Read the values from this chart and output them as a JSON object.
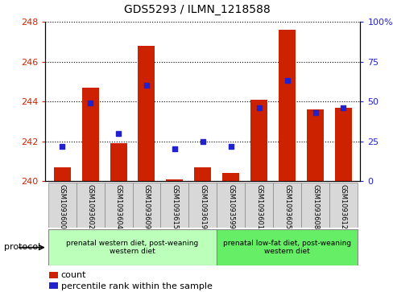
{
  "title": "GDS5293 / ILMN_1218588",
  "samples": [
    "GSM1093600",
    "GSM1093602",
    "GSM1093604",
    "GSM1093609",
    "GSM1093615",
    "GSM1093619",
    "GSM1093599",
    "GSM1093601",
    "GSM1093605",
    "GSM1093608",
    "GSM1093612"
  ],
  "bar_heights": [
    240.7,
    244.7,
    241.9,
    246.8,
    240.1,
    240.7,
    240.4,
    244.1,
    247.6,
    243.6,
    243.7
  ],
  "bar_base": 240,
  "percentile_values": [
    22,
    49,
    30,
    60,
    20,
    25,
    22,
    46,
    63,
    43,
    46
  ],
  "ylim": [
    240,
    248
  ],
  "y_ticks": [
    240,
    242,
    244,
    246,
    248
  ],
  "right_ylim": [
    0,
    100
  ],
  "right_yticks": [
    0,
    25,
    50,
    75,
    100
  ],
  "groups": [
    {
      "label": "prenatal western diet, post-weaning\nwestern diet",
      "start": 0,
      "end": 6,
      "color": "#bbffbb"
    },
    {
      "label": "prenatal low-fat diet, post-weaning\nwestern diet",
      "start": 6,
      "end": 11,
      "color": "#66ee66"
    }
  ],
  "bar_color": "#cc2200",
  "dot_color": "#2222cc",
  "tick_color_left": "#cc2200",
  "tick_color_right": "#2222cc",
  "label_count": "count",
  "label_percentile": "percentile rank within the sample",
  "protocol_label": "protocol",
  "bar_width": 0.6
}
